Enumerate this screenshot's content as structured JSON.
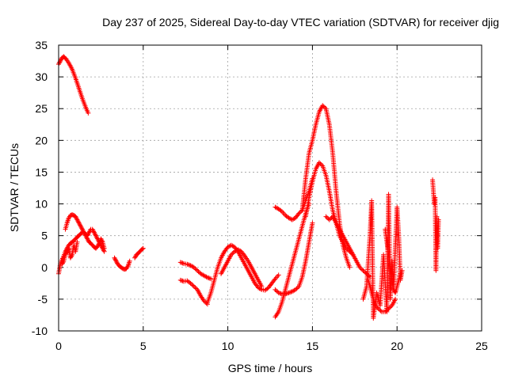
{
  "chart_data": {
    "type": "scatter",
    "title": "Day 237 of 2025, Sidereal Day-to-day VTEC variation (SDTVAR) for receiver djig",
    "xlabel": "GPS time / hours",
    "ylabel": "SDTVAR / TECUs",
    "xlim": [
      0,
      25
    ],
    "ylim": [
      -10,
      35
    ],
    "xticks": [
      "0",
      "5",
      "10",
      "15",
      "20",
      "25"
    ],
    "yticks": [
      "-10",
      "-5",
      "0",
      "5",
      "10",
      "15",
      "20",
      "25",
      "30",
      "35"
    ],
    "grid": true,
    "marker": "+",
    "color": "#ff0000",
    "series": [
      {
        "name": "arc-early-high",
        "x": [
          0.0,
          0.1,
          0.2,
          0.3,
          0.45,
          0.6,
          0.8,
          1.0,
          1.2,
          1.4,
          1.6,
          1.75
        ],
        "y": [
          32,
          32.5,
          33,
          33.2,
          32.8,
          32.2,
          31.2,
          29.8,
          28.2,
          26.6,
          25.2,
          24.3
        ]
      },
      {
        "name": "arc-early-low",
        "x": [
          0.0,
          0.1,
          0.2,
          0.3,
          0.4,
          0.5,
          0.6,
          0.7,
          0.8,
          0.9,
          1.0,
          1.1,
          1.2,
          1.3,
          1.4,
          1.5,
          1.6,
          1.7,
          1.8,
          1.9,
          2.0,
          2.1,
          2.2,
          2.3,
          2.4,
          2.5,
          2.6,
          2.7
        ],
        "y": [
          -1,
          0.5,
          1.2,
          1.8,
          2.5,
          3,
          3.5,
          3.8,
          4,
          4.2,
          4.5,
          4.8,
          5,
          5.3,
          5.5,
          5.5,
          5.2,
          5,
          5.5,
          6,
          6,
          5.5,
          5,
          4.5,
          4,
          3.5,
          3,
          2.5
        ]
      },
      {
        "name": "arc-early-mid",
        "x": [
          0.4,
          0.5,
          0.6,
          0.7,
          0.8,
          0.9,
          1.0,
          1.1,
          1.2,
          1.3,
          1.4,
          1.5,
          1.6,
          1.7,
          1.8,
          1.9,
          2.0,
          2.1,
          2.2,
          2.3,
          2.4,
          2.5,
          2.6,
          2.7
        ],
        "y": [
          6,
          7,
          7.8,
          8.2,
          8.3,
          8.2,
          8,
          7.5,
          7,
          6.5,
          6,
          5.5,
          5,
          4.5,
          4,
          3.8,
          3.5,
          3.2,
          3,
          3.3,
          3.8,
          4.5,
          4,
          3
        ]
      },
      {
        "name": "arc-early-scatter",
        "x": [
          0.2,
          0.3,
          0.4,
          0.5,
          0.6,
          0.7,
          0.8,
          0.9,
          1.0,
          1.1
        ],
        "y": [
          0.5,
          1,
          2,
          2.5,
          3,
          1.5,
          2,
          3.5,
          2.5,
          4
        ]
      },
      {
        "name": "arc-3-4h",
        "x": [
          3.3,
          3.4,
          3.5,
          3.6,
          3.7,
          3.8,
          3.9,
          4.0,
          4.1,
          4.2
        ],
        "y": [
          1.5,
          1,
          0.5,
          0.2,
          0,
          -0.2,
          -0.3,
          -0.2,
          0.2,
          1
        ]
      },
      {
        "name": "arc-5h",
        "x": [
          4.5,
          4.6,
          4.7,
          4.8,
          4.9,
          5.0
        ],
        "y": [
          1.5,
          2,
          2.2,
          2.5,
          2.8,
          3
        ]
      },
      {
        "name": "arc-7-9h-a",
        "x": [
          7.2,
          7.4,
          7.6,
          7.8,
          8.0,
          8.2,
          8.4,
          8.6,
          8.8,
          9.0
        ],
        "y": [
          0.8,
          0.6,
          0.5,
          0.3,
          0,
          -0.5,
          -1,
          -1.3,
          -1.6,
          -1.8
        ]
      },
      {
        "name": "arc-7-9h-b",
        "x": [
          7.2,
          7.4,
          7.6,
          7.8,
          8.0,
          8.2,
          8.4,
          8.6,
          8.8
        ],
        "y": [
          -2,
          -2.2,
          -2.1,
          -2.5,
          -3,
          -3.5,
          -4.5,
          -5.3,
          -5.8
        ]
      },
      {
        "name": "arc-9-13h",
        "x": [
          8.8,
          9.0,
          9.2,
          9.4,
          9.6,
          9.8,
          10.0,
          10.2,
          10.4,
          10.6,
          10.8,
          11.0,
          11.2,
          11.4,
          11.6,
          11.8,
          12.0,
          12.2,
          12.4,
          12.6,
          12.8,
          13.0
        ],
        "y": [
          -5.5,
          -4,
          -2,
          0,
          1.5,
          2.5,
          3.2,
          3.5,
          3.2,
          2.5,
          1.5,
          0.5,
          -0.5,
          -1.5,
          -2.5,
          -3.2,
          -3.5,
          -3.6,
          -3.2,
          -2.5,
          -1.8,
          -1.2
        ]
      },
      {
        "name": "arc-9-13h-b",
        "x": [
          9.6,
          9.8,
          10.0,
          10.2,
          10.4,
          10.6,
          10.8,
          11.0,
          11.2,
          11.4,
          11.6,
          11.8,
          12.0
        ],
        "y": [
          -1,
          0,
          1,
          2,
          2.5,
          2.8,
          2.5,
          1.8,
          1,
          0,
          -1,
          -2,
          -3
        ]
      },
      {
        "name": "arc-13-14h",
        "x": [
          12.8,
          13.0,
          13.2,
          13.4,
          13.6,
          13.8,
          14.0,
          14.2,
          14.4,
          14.6,
          14.8
        ],
        "y": [
          -7.8,
          -7,
          -5.5,
          -3.5,
          -1.5,
          0.5,
          2.5,
          4.5,
          6.5,
          8.5,
          10
        ]
      },
      {
        "name": "arc-13-15h-b",
        "x": [
          12.8,
          13.0,
          13.2,
          13.4,
          13.6,
          13.8,
          14.0,
          14.2,
          14.4,
          14.6,
          14.8,
          15.0
        ],
        "y": [
          -3.5,
          -4,
          -4.2,
          -4.2,
          -4,
          -3.8,
          -3.5,
          -3,
          -1.5,
          1,
          4,
          7
        ]
      },
      {
        "name": "arc-12-15h-c",
        "x": [
          12.8,
          13.0,
          13.2,
          13.4,
          13.6,
          13.8,
          14.0,
          14.2,
          14.4,
          14.6,
          14.8,
          15.0
        ],
        "y": [
          9.5,
          9.2,
          8.8,
          8.2,
          7.8,
          7.5,
          7.8,
          8.5,
          9,
          10.5,
          12,
          14
        ]
      },
      {
        "name": "peak-high",
        "x": [
          14.4,
          14.6,
          14.8,
          15.0,
          15.2,
          15.4,
          15.6,
          15.8,
          16.0,
          16.2,
          16.4,
          16.6,
          16.8,
          17.0,
          17.2
        ],
        "y": [
          9,
          14,
          18,
          20,
          22.5,
          24.5,
          25.5,
          25,
          22.5,
          18,
          12,
          7,
          3.5,
          1.5,
          0
        ]
      },
      {
        "name": "peak-low",
        "x": [
          14.6,
          14.8,
          15.0,
          15.2,
          15.4,
          15.6,
          15.8,
          16.0,
          16.2,
          16.4,
          16.6,
          16.8,
          17.0,
          17.2,
          17.4
        ],
        "y": [
          8,
          11,
          13.5,
          15.5,
          16.5,
          16,
          14.5,
          12,
          9,
          7,
          5,
          4,
          3,
          2.5,
          2
        ]
      },
      {
        "name": "arc-17-18h",
        "x": [
          15.8,
          16.0,
          16.2,
          16.4,
          16.6,
          16.8,
          17.0,
          17.2,
          17.4,
          17.6,
          17.8,
          18.0,
          18.2,
          18.4
        ],
        "y": [
          8,
          7.5,
          8,
          7,
          6,
          5,
          4,
          3,
          2,
          1,
          0,
          -0.5,
          -1,
          -1.5
        ]
      },
      {
        "name": "scatter-18-20h",
        "x": [
          18.0,
          18.2,
          18.4,
          18.5,
          18.6,
          18.8,
          19.0,
          19.2,
          19.4,
          19.5,
          19.6,
          19.7,
          19.8,
          20.0,
          20.1,
          20.2,
          20.3
        ],
        "y": [
          -5,
          -3,
          5,
          10.5,
          -8,
          -4,
          -6,
          2,
          -7,
          11.5,
          -5,
          1,
          -3,
          9.5,
          5,
          -2,
          -0.5
        ]
      },
      {
        "name": "scatter-18-20h-b",
        "x": [
          18.3,
          18.5,
          18.7,
          18.9,
          19.1,
          19.3,
          19.5,
          19.7,
          19.9
        ],
        "y": [
          -2,
          -4,
          -6,
          -6.5,
          -7,
          -7,
          -6.5,
          -6,
          -5
        ]
      },
      {
        "name": "scatter-19-20h-c",
        "x": [
          19.3,
          19.4,
          19.5,
          19.6,
          19.7,
          19.8,
          19.9,
          20.0,
          20.1,
          20.2
        ],
        "y": [
          6,
          4,
          2,
          0,
          -2,
          -3.5,
          -4,
          -3,
          -2,
          -1
        ]
      },
      {
        "name": "scatter-22h",
        "x": [
          22.1,
          22.2,
          22.25,
          22.3,
          22.35,
          22.4,
          22.45
        ],
        "y": [
          13.8,
          10,
          11,
          -0.5,
          8,
          3,
          7.5
        ]
      }
    ]
  }
}
